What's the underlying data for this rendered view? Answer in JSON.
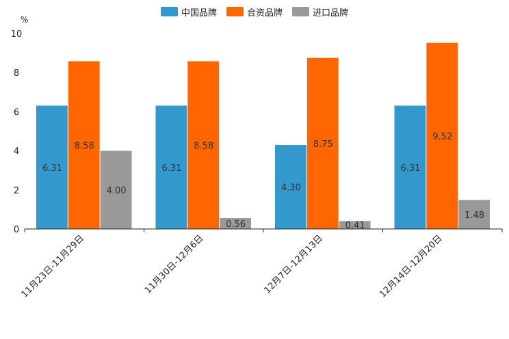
{
  "chart_data": {
    "type": "bar",
    "unit": "%",
    "categories": [
      "11月23日-11月29日",
      "11月30日-12月6日",
      "12月7日-12月13日",
      "12月14日-12月20日"
    ],
    "series": [
      {
        "name": "中国品牌",
        "color": "#3399cc",
        "values": [
          6.31,
          6.31,
          4.3,
          6.31
        ],
        "labels": [
          "6.31",
          "6.31",
          "4.30",
          "6.31"
        ]
      },
      {
        "name": "合资品牌",
        "color": "#ff6600",
        "values": [
          8.58,
          8.58,
          8.75,
          9.52
        ],
        "labels": [
          "8.58",
          "8.58",
          "8.75",
          "9.52"
        ]
      },
      {
        "name": "进口品牌",
        "color": "#999999",
        "values": [
          4.0,
          0.56,
          0.41,
          1.48
        ],
        "labels": [
          "4.00",
          "0.56",
          "0.41",
          "1.48"
        ]
      }
    ],
    "ylim": [
      0,
      10
    ],
    "yticks": [
      "0",
      "2",
      "4",
      "6",
      "8",
      "10"
    ],
    "legend_position": "top-center"
  }
}
